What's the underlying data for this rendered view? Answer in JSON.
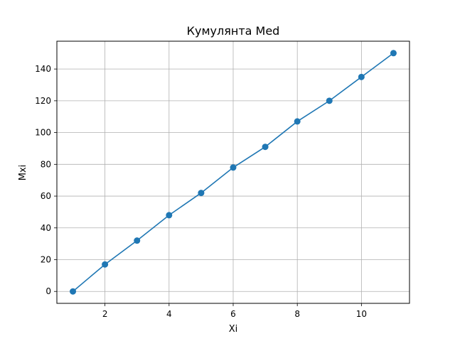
{
  "chart_data": {
    "type": "line",
    "title": "Кумулянта Med",
    "xlabel": "Xi",
    "ylabel": "Mxi",
    "grid": true,
    "xlim": [
      0.5,
      11.5
    ],
    "ylim": [
      -7.5,
      157.5
    ],
    "xticks": [
      2,
      4,
      6,
      8,
      10
    ],
    "yticks": [
      0,
      20,
      40,
      60,
      80,
      100,
      120,
      140
    ],
    "series": [
      {
        "color": "#1f77b4",
        "marker": "circle",
        "x": [
          1,
          2,
          3,
          4,
          5,
          6,
          7,
          8,
          9,
          10,
          11
        ],
        "y": [
          0,
          17,
          32,
          48,
          62,
          78,
          91,
          107,
          120,
          135,
          150
        ]
      }
    ]
  }
}
